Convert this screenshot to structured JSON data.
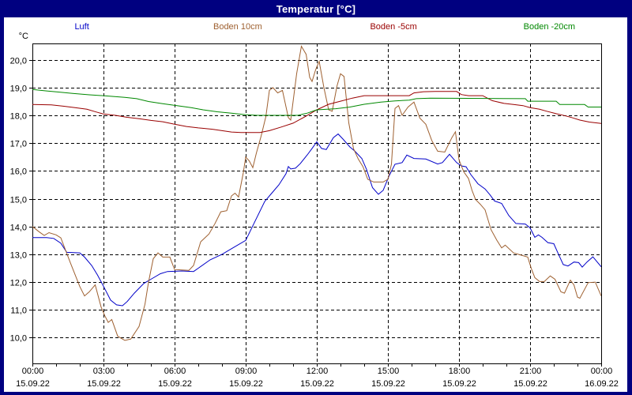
{
  "window": {
    "title": "Temperatur [°C]"
  },
  "legend": {
    "items": [
      {
        "label": "Luft",
        "color": "#0000c8"
      },
      {
        "label": "Boden 10cm",
        "color": "#9e6030"
      },
      {
        "label": "Boden -5cm",
        "color": "#990000"
      },
      {
        "label": "Boden -20cm",
        "color": "#008800"
      }
    ]
  },
  "chart_data": {
    "type": "line",
    "title": "Temperatur [°C]",
    "ylabel": "°C",
    "xlabel": "",
    "grid": true,
    "legend_position": "top",
    "ylim": [
      9.1,
      20.6
    ],
    "xlim_hours": [
      0,
      24
    ],
    "y_ticks": [
      {
        "value": 20,
        "label": "20,0"
      },
      {
        "value": 19,
        "label": "19,0"
      },
      {
        "value": 18,
        "label": "18,0"
      },
      {
        "value": 17,
        "label": "17,0"
      },
      {
        "value": 16,
        "label": "16,0"
      },
      {
        "value": 15,
        "label": "15,0"
      },
      {
        "value": 14,
        "label": "14,0"
      },
      {
        "value": 13,
        "label": "13,0"
      },
      {
        "value": 12,
        "label": "12,0"
      },
      {
        "value": 11,
        "label": "11,0"
      },
      {
        "value": 10,
        "label": "10,0"
      }
    ],
    "x_ticks": [
      {
        "hour": 0,
        "time": "00:00",
        "date": "15.09.22"
      },
      {
        "hour": 3,
        "time": "03:00",
        "date": "15.09.22"
      },
      {
        "hour": 6,
        "time": "06:00",
        "date": "15.09.22"
      },
      {
        "hour": 9,
        "time": "09:00",
        "date": "15.09.22"
      },
      {
        "hour": 12,
        "time": "12:00",
        "date": "15.09.22"
      },
      {
        "hour": 15,
        "time": "15:00",
        "date": "15.09.22"
      },
      {
        "hour": 18,
        "time": "18:00",
        "date": "15.09.22"
      },
      {
        "hour": 21,
        "time": "21:00",
        "date": "15.09.22"
      },
      {
        "hour": 24,
        "time": "00:00",
        "date": "16.09.22"
      }
    ],
    "series": [
      {
        "name": "Luft",
        "color": "#0000c8",
        "points": [
          [
            0,
            13.6
          ],
          [
            0.6,
            13.6
          ],
          [
            0.9,
            13.57
          ],
          [
            1.2,
            13.4
          ],
          [
            1.45,
            13.07
          ],
          [
            2.0,
            13.05
          ],
          [
            2.2,
            12.9
          ],
          [
            2.5,
            12.6
          ],
          [
            2.75,
            12.25
          ],
          [
            3.0,
            11.85
          ],
          [
            3.3,
            11.35
          ],
          [
            3.55,
            11.18
          ],
          [
            3.8,
            11.15
          ],
          [
            4.0,
            11.3
          ],
          [
            4.3,
            11.6
          ],
          [
            4.7,
            11.95
          ],
          [
            5.0,
            12.1
          ],
          [
            5.4,
            12.3
          ],
          [
            5.7,
            12.38
          ],
          [
            6.3,
            12.4
          ],
          [
            6.8,
            12.38
          ],
          [
            7.0,
            12.5
          ],
          [
            7.5,
            12.8
          ],
          [
            8.0,
            13.0
          ],
          [
            8.5,
            13.25
          ],
          [
            9.0,
            13.5
          ],
          [
            9.4,
            14.2
          ],
          [
            9.8,
            14.9
          ],
          [
            10.1,
            15.2
          ],
          [
            10.4,
            15.5
          ],
          [
            10.7,
            15.9
          ],
          [
            10.8,
            16.16
          ],
          [
            10.9,
            16.07
          ],
          [
            11.1,
            16.1
          ],
          [
            11.3,
            16.26
          ],
          [
            11.6,
            16.58
          ],
          [
            11.8,
            16.81
          ],
          [
            12.0,
            17.05
          ],
          [
            12.2,
            16.81
          ],
          [
            12.4,
            16.77
          ],
          [
            12.7,
            17.2
          ],
          [
            12.9,
            17.33
          ],
          [
            13.1,
            17.15
          ],
          [
            13.4,
            16.86
          ],
          [
            13.6,
            16.72
          ],
          [
            13.9,
            16.45
          ],
          [
            14.1,
            16.05
          ],
          [
            14.35,
            15.4
          ],
          [
            14.6,
            15.16
          ],
          [
            14.8,
            15.3
          ],
          [
            15.05,
            15.82
          ],
          [
            15.3,
            16.24
          ],
          [
            15.6,
            16.3
          ],
          [
            15.8,
            16.57
          ],
          [
            16.1,
            16.45
          ],
          [
            16.6,
            16.43
          ],
          [
            17.1,
            16.25
          ],
          [
            17.3,
            16.3
          ],
          [
            17.6,
            16.6
          ],
          [
            17.9,
            16.3
          ],
          [
            18.1,
            16.18
          ],
          [
            18.3,
            16.15
          ],
          [
            18.5,
            15.87
          ],
          [
            18.8,
            15.54
          ],
          [
            19.1,
            15.35
          ],
          [
            19.3,
            15.15
          ],
          [
            19.5,
            14.92
          ],
          [
            19.8,
            14.83
          ],
          [
            20.1,
            14.4
          ],
          [
            20.4,
            14.11
          ],
          [
            20.8,
            14.09
          ],
          [
            21.0,
            13.95
          ],
          [
            21.2,
            13.61
          ],
          [
            21.35,
            13.7
          ],
          [
            21.5,
            13.61
          ],
          [
            21.75,
            13.42
          ],
          [
            22.0,
            13.38
          ],
          [
            22.2,
            13.0
          ],
          [
            22.4,
            12.63
          ],
          [
            22.6,
            12.58
          ],
          [
            22.85,
            12.72
          ],
          [
            23.05,
            12.7
          ],
          [
            23.2,
            12.54
          ],
          [
            23.4,
            12.72
          ],
          [
            23.65,
            12.91
          ],
          [
            24,
            12.55
          ]
        ]
      },
      {
        "name": "Boden 10cm",
        "color": "#9e6030",
        "points": [
          [
            0,
            14.0
          ],
          [
            0.3,
            13.8
          ],
          [
            0.5,
            13.68
          ],
          [
            0.7,
            13.78
          ],
          [
            1.0,
            13.7
          ],
          [
            1.2,
            13.59
          ],
          [
            1.6,
            12.7
          ],
          [
            2.0,
            11.84
          ],
          [
            2.2,
            11.5
          ],
          [
            2.4,
            11.65
          ],
          [
            2.65,
            11.9
          ],
          [
            2.9,
            11.1
          ],
          [
            3.05,
            10.8
          ],
          [
            3.2,
            10.55
          ],
          [
            3.35,
            10.65
          ],
          [
            3.6,
            10.05
          ],
          [
            3.9,
            9.9
          ],
          [
            4.15,
            9.95
          ],
          [
            4.5,
            10.4
          ],
          [
            4.75,
            11.2
          ],
          [
            4.9,
            12.0
          ],
          [
            5.1,
            12.84
          ],
          [
            5.3,
            13.05
          ],
          [
            5.5,
            12.9
          ],
          [
            5.8,
            12.9
          ],
          [
            6.0,
            12.45
          ],
          [
            6.6,
            12.42
          ],
          [
            6.8,
            12.6
          ],
          [
            7.1,
            13.45
          ],
          [
            7.45,
            13.73
          ],
          [
            7.7,
            14.1
          ],
          [
            7.95,
            14.53
          ],
          [
            8.2,
            14.57
          ],
          [
            8.4,
            15.1
          ],
          [
            8.55,
            15.2
          ],
          [
            8.7,
            15.06
          ],
          [
            8.9,
            15.94
          ],
          [
            9.0,
            16.5
          ],
          [
            9.15,
            16.36
          ],
          [
            9.3,
            16.12
          ],
          [
            9.45,
            16.64
          ],
          [
            9.65,
            17.25
          ],
          [
            9.85,
            17.95
          ],
          [
            10.0,
            18.9
          ],
          [
            10.15,
            19.0
          ],
          [
            10.35,
            18.81
          ],
          [
            10.55,
            18.9
          ],
          [
            10.8,
            17.92
          ],
          [
            10.9,
            17.83
          ],
          [
            11.15,
            19.5
          ],
          [
            11.35,
            20.49
          ],
          [
            11.55,
            20.2
          ],
          [
            11.7,
            19.37
          ],
          [
            11.8,
            19.22
          ],
          [
            11.95,
            19.64
          ],
          [
            12.1,
            19.95
          ],
          [
            12.3,
            19.0
          ],
          [
            12.5,
            18.2
          ],
          [
            12.65,
            18.15
          ],
          [
            12.85,
            19.05
          ],
          [
            13.0,
            19.5
          ],
          [
            13.15,
            19.4
          ],
          [
            13.35,
            17.73
          ],
          [
            13.55,
            16.8
          ],
          [
            13.75,
            16.43
          ],
          [
            13.95,
            16.15
          ],
          [
            14.15,
            15.7
          ],
          [
            14.4,
            15.6
          ],
          [
            14.8,
            15.6
          ],
          [
            15.0,
            15.7
          ],
          [
            15.15,
            16.24
          ],
          [
            15.3,
            18.25
          ],
          [
            15.45,
            18.35
          ],
          [
            15.6,
            18.0
          ],
          [
            15.85,
            18.3
          ],
          [
            16.1,
            18.48
          ],
          [
            16.35,
            17.9
          ],
          [
            16.6,
            17.68
          ],
          [
            16.85,
            17.1
          ],
          [
            17.1,
            16.71
          ],
          [
            17.4,
            16.68
          ],
          [
            17.7,
            17.2
          ],
          [
            17.85,
            17.41
          ],
          [
            18.0,
            16.4
          ],
          [
            18.2,
            15.97
          ],
          [
            18.4,
            15.73
          ],
          [
            18.55,
            15.3
          ],
          [
            18.7,
            14.97
          ],
          [
            18.9,
            14.8
          ],
          [
            19.1,
            14.6
          ],
          [
            19.35,
            13.89
          ],
          [
            19.6,
            13.5
          ],
          [
            19.8,
            13.23
          ],
          [
            19.95,
            13.33
          ],
          [
            20.3,
            13.05
          ],
          [
            20.5,
            13.0
          ],
          [
            20.9,
            12.9
          ],
          [
            21.05,
            12.49
          ],
          [
            21.2,
            12.16
          ],
          [
            21.4,
            12.02
          ],
          [
            21.6,
            12.02
          ],
          [
            21.85,
            12.22
          ],
          [
            22.05,
            12.1
          ],
          [
            22.3,
            11.65
          ],
          [
            22.45,
            11.6
          ],
          [
            22.7,
            12.07
          ],
          [
            22.85,
            11.9
          ],
          [
            23.0,
            11.46
          ],
          [
            23.1,
            11.42
          ],
          [
            23.45,
            11.98
          ],
          [
            23.75,
            12.0
          ],
          [
            24,
            11.5
          ]
        ]
      },
      {
        "name": "Boden -5cm",
        "color": "#990000",
        "points": [
          [
            0,
            18.39
          ],
          [
            0.8,
            18.38
          ],
          [
            1.3,
            18.33
          ],
          [
            1.8,
            18.28
          ],
          [
            2.3,
            18.22
          ],
          [
            2.7,
            18.12
          ],
          [
            3.0,
            18.05
          ],
          [
            3.5,
            18.0
          ],
          [
            4.0,
            17.93
          ],
          [
            4.5,
            17.88
          ],
          [
            5.0,
            17.82
          ],
          [
            5.5,
            17.77
          ],
          [
            6.0,
            17.68
          ],
          [
            6.5,
            17.6
          ],
          [
            7.0,
            17.55
          ],
          [
            7.6,
            17.5
          ],
          [
            8.0,
            17.45
          ],
          [
            8.4,
            17.4
          ],
          [
            8.8,
            17.38
          ],
          [
            9.6,
            17.38
          ],
          [
            10.0,
            17.45
          ],
          [
            10.5,
            17.58
          ],
          [
            11.0,
            17.72
          ],
          [
            11.5,
            17.95
          ],
          [
            12.0,
            18.2
          ],
          [
            12.5,
            18.4
          ],
          [
            13.0,
            18.51
          ],
          [
            13.5,
            18.62
          ],
          [
            14.0,
            18.71
          ],
          [
            15.9,
            18.71
          ],
          [
            16.1,
            18.81
          ],
          [
            16.5,
            18.85
          ],
          [
            17.0,
            18.86
          ],
          [
            17.9,
            18.86
          ],
          [
            18.1,
            18.75
          ],
          [
            18.4,
            18.71
          ],
          [
            19.0,
            18.71
          ],
          [
            19.4,
            18.53
          ],
          [
            19.9,
            18.43
          ],
          [
            20.3,
            18.39
          ],
          [
            20.7,
            18.35
          ],
          [
            21.0,
            18.28
          ],
          [
            21.4,
            18.22
          ],
          [
            21.7,
            18.15
          ],
          [
            22.1,
            18.06
          ],
          [
            22.5,
            17.98
          ],
          [
            22.8,
            17.91
          ],
          [
            23.1,
            17.83
          ],
          [
            23.5,
            17.76
          ],
          [
            24,
            17.71
          ]
        ]
      },
      {
        "name": "Boden -20cm",
        "color": "#008800",
        "points": [
          [
            0,
            18.93
          ],
          [
            0.6,
            18.88
          ],
          [
            1.1,
            18.84
          ],
          [
            1.7,
            18.79
          ],
          [
            2.4,
            18.74
          ],
          [
            3.1,
            18.7
          ],
          [
            3.9,
            18.65
          ],
          [
            4.4,
            18.6
          ],
          [
            4.9,
            18.5
          ],
          [
            5.5,
            18.42
          ],
          [
            6.1,
            18.35
          ],
          [
            6.7,
            18.28
          ],
          [
            7.2,
            18.2
          ],
          [
            7.8,
            18.13
          ],
          [
            8.4,
            18.08
          ],
          [
            9.0,
            18.02
          ],
          [
            9.5,
            18.0
          ],
          [
            11.2,
            18.0
          ],
          [
            11.6,
            18.08
          ],
          [
            12.0,
            18.2
          ],
          [
            12.8,
            18.24
          ],
          [
            13.4,
            18.3
          ],
          [
            14.0,
            18.4
          ],
          [
            14.7,
            18.48
          ],
          [
            15.3,
            18.52
          ],
          [
            15.9,
            18.55
          ],
          [
            16.2,
            18.6
          ],
          [
            16.8,
            18.62
          ],
          [
            19.2,
            18.61
          ],
          [
            20.8,
            18.6
          ],
          [
            20.9,
            18.51
          ],
          [
            22.1,
            18.51
          ],
          [
            22.25,
            18.39
          ],
          [
            23.3,
            18.39
          ],
          [
            23.45,
            18.3
          ],
          [
            24,
            18.3
          ]
        ]
      }
    ]
  }
}
